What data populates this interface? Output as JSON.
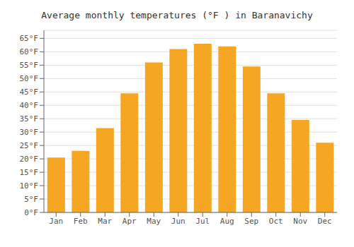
{
  "chart_data": {
    "type": "bar",
    "title": "Average monthly temperatures (°F ) in Baranavichy",
    "categories": [
      "Jan",
      "Feb",
      "Mar",
      "Apr",
      "May",
      "Jun",
      "Jul",
      "Aug",
      "Sep",
      "Oct",
      "Nov",
      "Dec"
    ],
    "values": [
      20.5,
      23.0,
      31.5,
      44.5,
      56.0,
      61.0,
      63.0,
      62.0,
      54.5,
      44.5,
      34.5,
      26.0
    ],
    "color": "#F5A623",
    "ylim": [
      0,
      68
    ],
    "yticks": [
      {
        "value": 0,
        "label": "0°F"
      },
      {
        "value": 5,
        "label": "5°F"
      },
      {
        "value": 10,
        "label": "10°F"
      },
      {
        "value": 15,
        "label": "15°F"
      },
      {
        "value": 20,
        "label": "20°F"
      },
      {
        "value": 25,
        "label": "25°F"
      },
      {
        "value": 30,
        "label": "30°F"
      },
      {
        "value": 35,
        "label": "35°F"
      },
      {
        "value": 40,
        "label": "40°F"
      },
      {
        "value": 45,
        "label": "45°F"
      },
      {
        "value": 50,
        "label": "50°F"
      },
      {
        "value": 55,
        "label": "55°F"
      },
      {
        "value": 60,
        "label": "60°F"
      },
      {
        "value": 65,
        "label": "65°F"
      }
    ],
    "grid": true
  }
}
